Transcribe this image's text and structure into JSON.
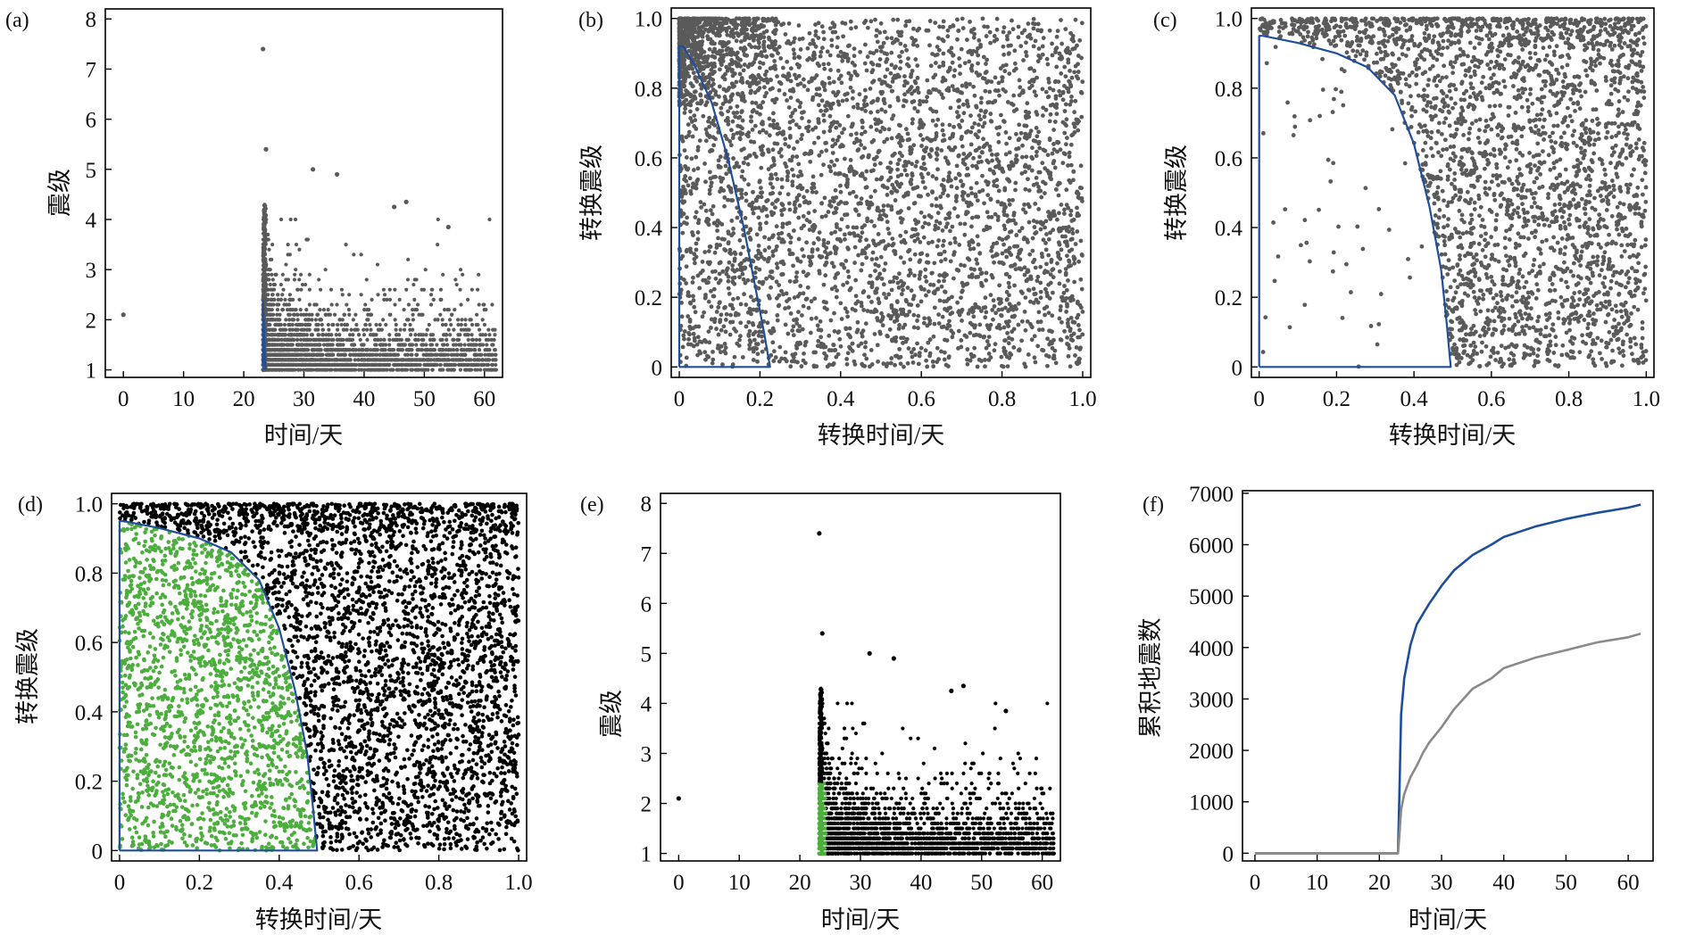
{
  "colors": {
    "scatter_gray": "#5a5a5a",
    "boundary_blue": "#1f4e9a",
    "selected_green": "#4cae3c",
    "black": "#000000",
    "curve_gray": "#8a8a8a"
  },
  "chart_data": [
    {
      "id": "a",
      "panel_label": "(a)",
      "type": "scatter",
      "xlabel": "时间/天",
      "ylabel": "震级",
      "xlim": [
        -3,
        63
      ],
      "ylim": [
        0.85,
        8.2
      ],
      "xticks": [
        0,
        10,
        20,
        30,
        40,
        50,
        60
      ],
      "yticks": [
        1,
        2,
        3,
        4,
        5,
        6,
        7,
        8
      ],
      "xtick_labels": [
        "0",
        "10",
        "20",
        "30",
        "40",
        "50",
        "60"
      ],
      "ytick_labels": [
        "1",
        "2",
        "3",
        "4",
        "5",
        "6",
        "7",
        "8"
      ],
      "point_color": "#5a5a5a",
      "notable_points": [
        [
          0,
          2.1
        ],
        [
          23.2,
          7.4
        ],
        [
          23.7,
          5.4
        ],
        [
          31.5,
          5.0
        ],
        [
          35.5,
          4.9
        ],
        [
          45,
          4.25
        ],
        [
          47,
          4.35
        ],
        [
          54,
          3.85
        ]
      ],
      "catalog": {
        "count": 6800,
        "t_start": 23.2,
        "t_end": 62,
        "m_min": 1.0
      },
      "overlay": {
        "color": "#1f4e9a",
        "x": [
          23.2,
          23.2,
          23.6,
          23.6
        ],
        "y": [
          1.0,
          2.4,
          1.0,
          1.0
        ]
      }
    },
    {
      "id": "b",
      "panel_label": "(b)",
      "type": "scatter",
      "xlabel": "转换时间/天",
      "ylabel": "转换震级",
      "xlim": [
        -0.02,
        1.02
      ],
      "ylim": [
        -0.03,
        1.03
      ],
      "xticks": [
        0,
        0.2,
        0.4,
        0.6,
        0.8,
        1.0
      ],
      "yticks": [
        0,
        0.2,
        0.4,
        0.6,
        0.8,
        1.0
      ],
      "xtick_labels": [
        "0",
        "0.2",
        "0.4",
        "0.6",
        "0.8",
        "1.0"
      ],
      "ytick_labels": [
        "0",
        "0.2",
        "0.4",
        "0.6",
        "0.8",
        "1.0"
      ],
      "point_color": "#5a5a5a",
      "distribution": {
        "count": 4200,
        "note": "uniform with cluster near (0,1)"
      },
      "boundary": {
        "color": "#1f4e9a",
        "x": [
          0,
          0,
          0.01,
          0.04,
          0.08,
          0.12,
          0.16,
          0.19,
          0.21,
          0.225,
          0
        ],
        "y": [
          0,
          0.92,
          0.92,
          0.86,
          0.76,
          0.6,
          0.4,
          0.22,
          0.1,
          0,
          0
        ]
      }
    },
    {
      "id": "c",
      "panel_label": "(c)",
      "type": "scatter",
      "xlabel": "转换时间/天",
      "ylabel": "转换震级",
      "xlim": [
        -0.02,
        1.02
      ],
      "ylim": [
        -0.03,
        1.03
      ],
      "xticks": [
        0,
        0.2,
        0.4,
        0.6,
        0.8,
        1.0
      ],
      "yticks": [
        0,
        0.2,
        0.4,
        0.6,
        0.8,
        1.0
      ],
      "xtick_labels": [
        "0",
        "0.2",
        "0.4",
        "0.6",
        "0.8",
        "1.0"
      ],
      "ytick_labels": [
        "0",
        "0.2",
        "0.4",
        "0.6",
        "0.8",
        "1.0"
      ],
      "point_color": "#5a5a5a",
      "distribution": {
        "count": 4200,
        "note": "sparse inside boundary, dense outside"
      },
      "boundary": {
        "color": "#1f4e9a",
        "x": [
          0,
          0,
          0.01,
          0.1,
          0.2,
          0.28,
          0.35,
          0.4,
          0.44,
          0.47,
          0.485,
          0.495,
          0
        ],
        "y": [
          0,
          0.95,
          0.95,
          0.93,
          0.9,
          0.86,
          0.78,
          0.64,
          0.46,
          0.28,
          0.12,
          0,
          0
        ]
      }
    },
    {
      "id": "d",
      "panel_label": "(d)",
      "type": "scatter",
      "xlabel": "转换时间/天",
      "ylabel": "转换震级",
      "xlim": [
        -0.02,
        1.02
      ],
      "ylim": [
        -0.03,
        1.03
      ],
      "xticks": [
        0,
        0.2,
        0.4,
        0.6,
        0.8,
        1.0
      ],
      "yticks": [
        0,
        0.2,
        0.4,
        0.6,
        0.8,
        1.0
      ],
      "xtick_labels": [
        "0",
        "0.2",
        "0.4",
        "0.6",
        "0.8",
        "1.0"
      ],
      "ytick_labels": [
        "0",
        "0.2",
        "0.4",
        "0.6",
        "0.8",
        "1.0"
      ],
      "outside_color": "#000000",
      "inside_color": "#4cae3c",
      "distribution": {
        "count": 5200
      },
      "boundary": {
        "color": "#1f4e9a",
        "x": [
          0,
          0,
          0.01,
          0.1,
          0.2,
          0.28,
          0.35,
          0.4,
          0.44,
          0.47,
          0.485,
          0.495,
          0
        ],
        "y": [
          0,
          0.95,
          0.95,
          0.93,
          0.9,
          0.86,
          0.78,
          0.64,
          0.46,
          0.28,
          0.12,
          0,
          0
        ]
      }
    },
    {
      "id": "e",
      "panel_label": "(e)",
      "type": "scatter",
      "xlabel": "时间/天",
      "ylabel": "震级",
      "xlim": [
        -3,
        63
      ],
      "ylim": [
        0.85,
        8.2
      ],
      "xticks": [
        0,
        10,
        20,
        30,
        40,
        50,
        60
      ],
      "yticks": [
        1,
        2,
        3,
        4,
        5,
        6,
        7,
        8
      ],
      "xtick_labels": [
        "0",
        "10",
        "20",
        "30",
        "40",
        "50",
        "60"
      ],
      "ytick_labels": [
        "1",
        "2",
        "3",
        "4",
        "5",
        "6",
        "7",
        "8"
      ],
      "point_color": "#000000",
      "selected_color": "#4cae3c",
      "notable_points": [
        [
          0,
          2.1
        ],
        [
          23.2,
          7.4
        ],
        [
          23.7,
          5.4
        ],
        [
          31.5,
          5.0
        ],
        [
          35.5,
          4.9
        ],
        [
          45,
          4.25
        ],
        [
          47,
          4.35
        ],
        [
          54,
          3.85
        ]
      ],
      "catalog": {
        "count": 6800,
        "t_start": 23.2,
        "t_end": 62,
        "m_min": 1.0
      },
      "selected_region": {
        "t": [
          23.2,
          24.3
        ],
        "m": [
          1.0,
          2.4
        ]
      }
    },
    {
      "id": "f",
      "panel_label": "(f)",
      "type": "line",
      "xlabel": "时间/天",
      "ylabel": "累积地震数",
      "xlim": [
        -2,
        64
      ],
      "ylim": [
        -150,
        7050
      ],
      "xticks": [
        0,
        10,
        20,
        30,
        40,
        50,
        60
      ],
      "yticks": [
        0,
        1000,
        2000,
        3000,
        4000,
        5000,
        6000,
        7000
      ],
      "xtick_labels": [
        "0",
        "10",
        "20",
        "30",
        "40",
        "50",
        "60"
      ],
      "ytick_labels": [
        "0",
        "1000",
        "2000",
        "3000",
        "4000",
        "5000",
        "6000",
        "7000"
      ],
      "series": [
        {
          "color": "#1f4e9a",
          "x": [
            0,
            23,
            23.2,
            23.5,
            24,
            25,
            26,
            27,
            28,
            30,
            32,
            35,
            38,
            40,
            45,
            50,
            55,
            60,
            62
          ],
          "y": [
            0,
            0,
            1000,
            2700,
            3400,
            4050,
            4450,
            4650,
            4850,
            5200,
            5500,
            5800,
            6000,
            6150,
            6350,
            6500,
            6620,
            6720,
            6780
          ]
        },
        {
          "color": "#8a8a8a",
          "x": [
            0,
            23,
            23.2,
            23.5,
            24,
            25,
            26,
            27,
            28,
            30,
            32,
            35,
            38,
            40,
            45,
            50,
            55,
            60,
            62
          ],
          "y": [
            0,
            0,
            300,
            850,
            1150,
            1480,
            1700,
            1950,
            2150,
            2450,
            2800,
            3200,
            3400,
            3600,
            3800,
            3950,
            4100,
            4200,
            4270
          ]
        }
      ]
    }
  ]
}
